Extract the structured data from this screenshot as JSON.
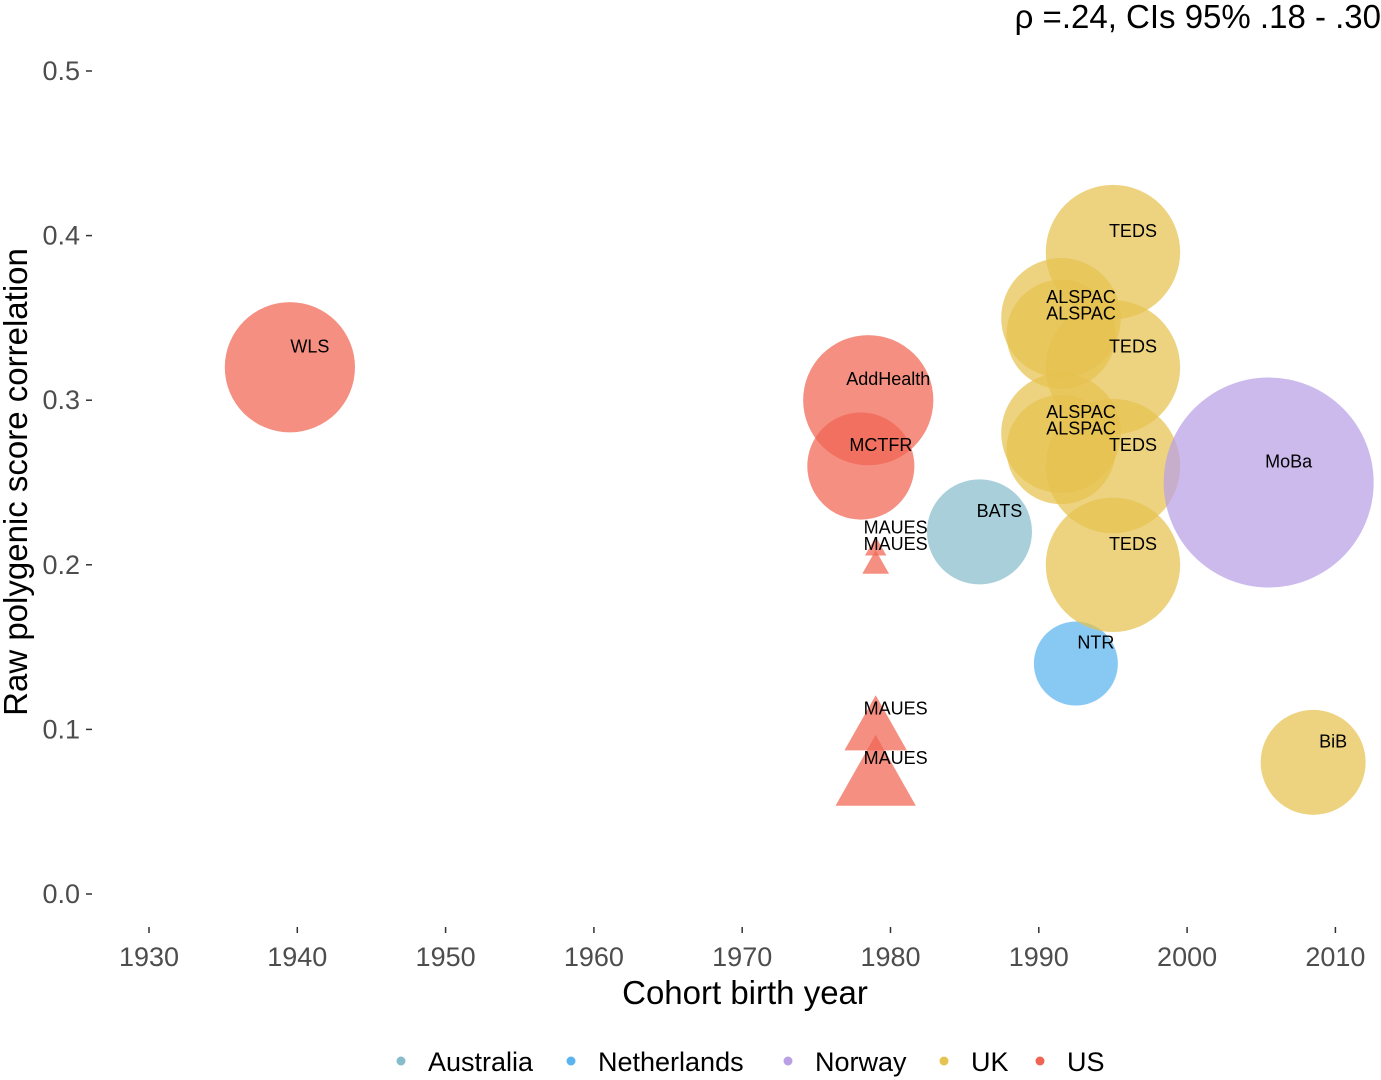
{
  "chart_data": {
    "type": "scatter",
    "annotation": "ρ =.24, CIs 95% .18 - .30",
    "xlabel": "Cohort birth year",
    "ylabel": "Raw polygenic score correlation",
    "xlim": [
      1925,
      2012
    ],
    "ylim": [
      0.0,
      0.5
    ],
    "x_ticks": [
      "1930",
      "1940",
      "1950",
      "1960",
      "1970",
      "1980",
      "1990",
      "2000",
      "2010"
    ],
    "y_ticks": [
      "0.0",
      "0.1",
      "0.2",
      "0.3",
      "0.4",
      "0.5"
    ],
    "grid": false,
    "legend_position": "bottom",
    "legend": [
      {
        "name": "Australia",
        "color": "#86BCCC"
      },
      {
        "name": "Netherlands",
        "color": "#5AB4F0"
      },
      {
        "name": "Norway",
        "color": "#B9A0E6"
      },
      {
        "name": "UK",
        "color": "#E6C24F"
      },
      {
        "name": "US",
        "color": "#F06452"
      }
    ],
    "points": [
      {
        "label": "WLS",
        "x": 1939.5,
        "y": 0.32,
        "country": "US",
        "shape": "circle",
        "size": 0.62
      },
      {
        "label": "AddHealth",
        "x": 1978.5,
        "y": 0.3,
        "country": "US",
        "shape": "circle",
        "size": 0.62
      },
      {
        "label": "MCTFR",
        "x": 1978,
        "y": 0.26,
        "country": "US",
        "shape": "circle",
        "size": 0.51
      },
      {
        "label": "MAUES",
        "x": 1979,
        "y": 0.21,
        "country": "US",
        "shape": "triangle",
        "size": 0.12
      },
      {
        "label": "MAUES",
        "x": 1979,
        "y": 0.2,
        "country": "US",
        "shape": "triangle",
        "size": 0.15
      },
      {
        "label": "MAUES",
        "x": 1979,
        "y": 0.1,
        "country": "US",
        "shape": "triangle",
        "size": 0.35
      },
      {
        "label": "MAUES",
        "x": 1979,
        "y": 0.07,
        "country": "US",
        "shape": "triangle",
        "size": 0.45
      },
      {
        "label": "BATS",
        "x": 1986,
        "y": 0.22,
        "country": "Australia",
        "shape": "circle",
        "size": 0.5
      },
      {
        "label": "NTR",
        "x": 1992.5,
        "y": 0.14,
        "country": "Netherlands",
        "shape": "circle",
        "size": 0.4
      },
      {
        "label": "TEDS",
        "x": 1995,
        "y": 0.39,
        "country": "UK",
        "shape": "circle",
        "size": 0.64
      },
      {
        "label": "ALSPAC",
        "x": 1991.5,
        "y": 0.35,
        "country": "UK",
        "shape": "circle",
        "size": 0.57
      },
      {
        "label": "ALSPAC",
        "x": 1991.5,
        "y": 0.34,
        "country": "UK",
        "shape": "circle",
        "size": 0.52
      },
      {
        "label": "TEDS",
        "x": 1995,
        "y": 0.32,
        "country": "UK",
        "shape": "circle",
        "size": 0.64
      },
      {
        "label": "ALSPAC",
        "x": 1991.5,
        "y": 0.28,
        "country": "UK",
        "shape": "circle",
        "size": 0.57
      },
      {
        "label": "ALSPAC",
        "x": 1991.5,
        "y": 0.27,
        "country": "UK",
        "shape": "circle",
        "size": 0.52
      },
      {
        "label": "TEDS",
        "x": 1995,
        "y": 0.26,
        "country": "UK",
        "shape": "circle",
        "size": 0.64
      },
      {
        "label": "TEDS",
        "x": 1995,
        "y": 0.2,
        "country": "UK",
        "shape": "circle",
        "size": 0.64
      },
      {
        "label": "MoBa",
        "x": 2005.5,
        "y": 0.25,
        "country": "Norway",
        "shape": "circle",
        "size": 1.0
      },
      {
        "label": "BiB",
        "x": 2008.5,
        "y": 0.08,
        "country": "UK",
        "shape": "circle",
        "size": 0.5
      }
    ]
  }
}
